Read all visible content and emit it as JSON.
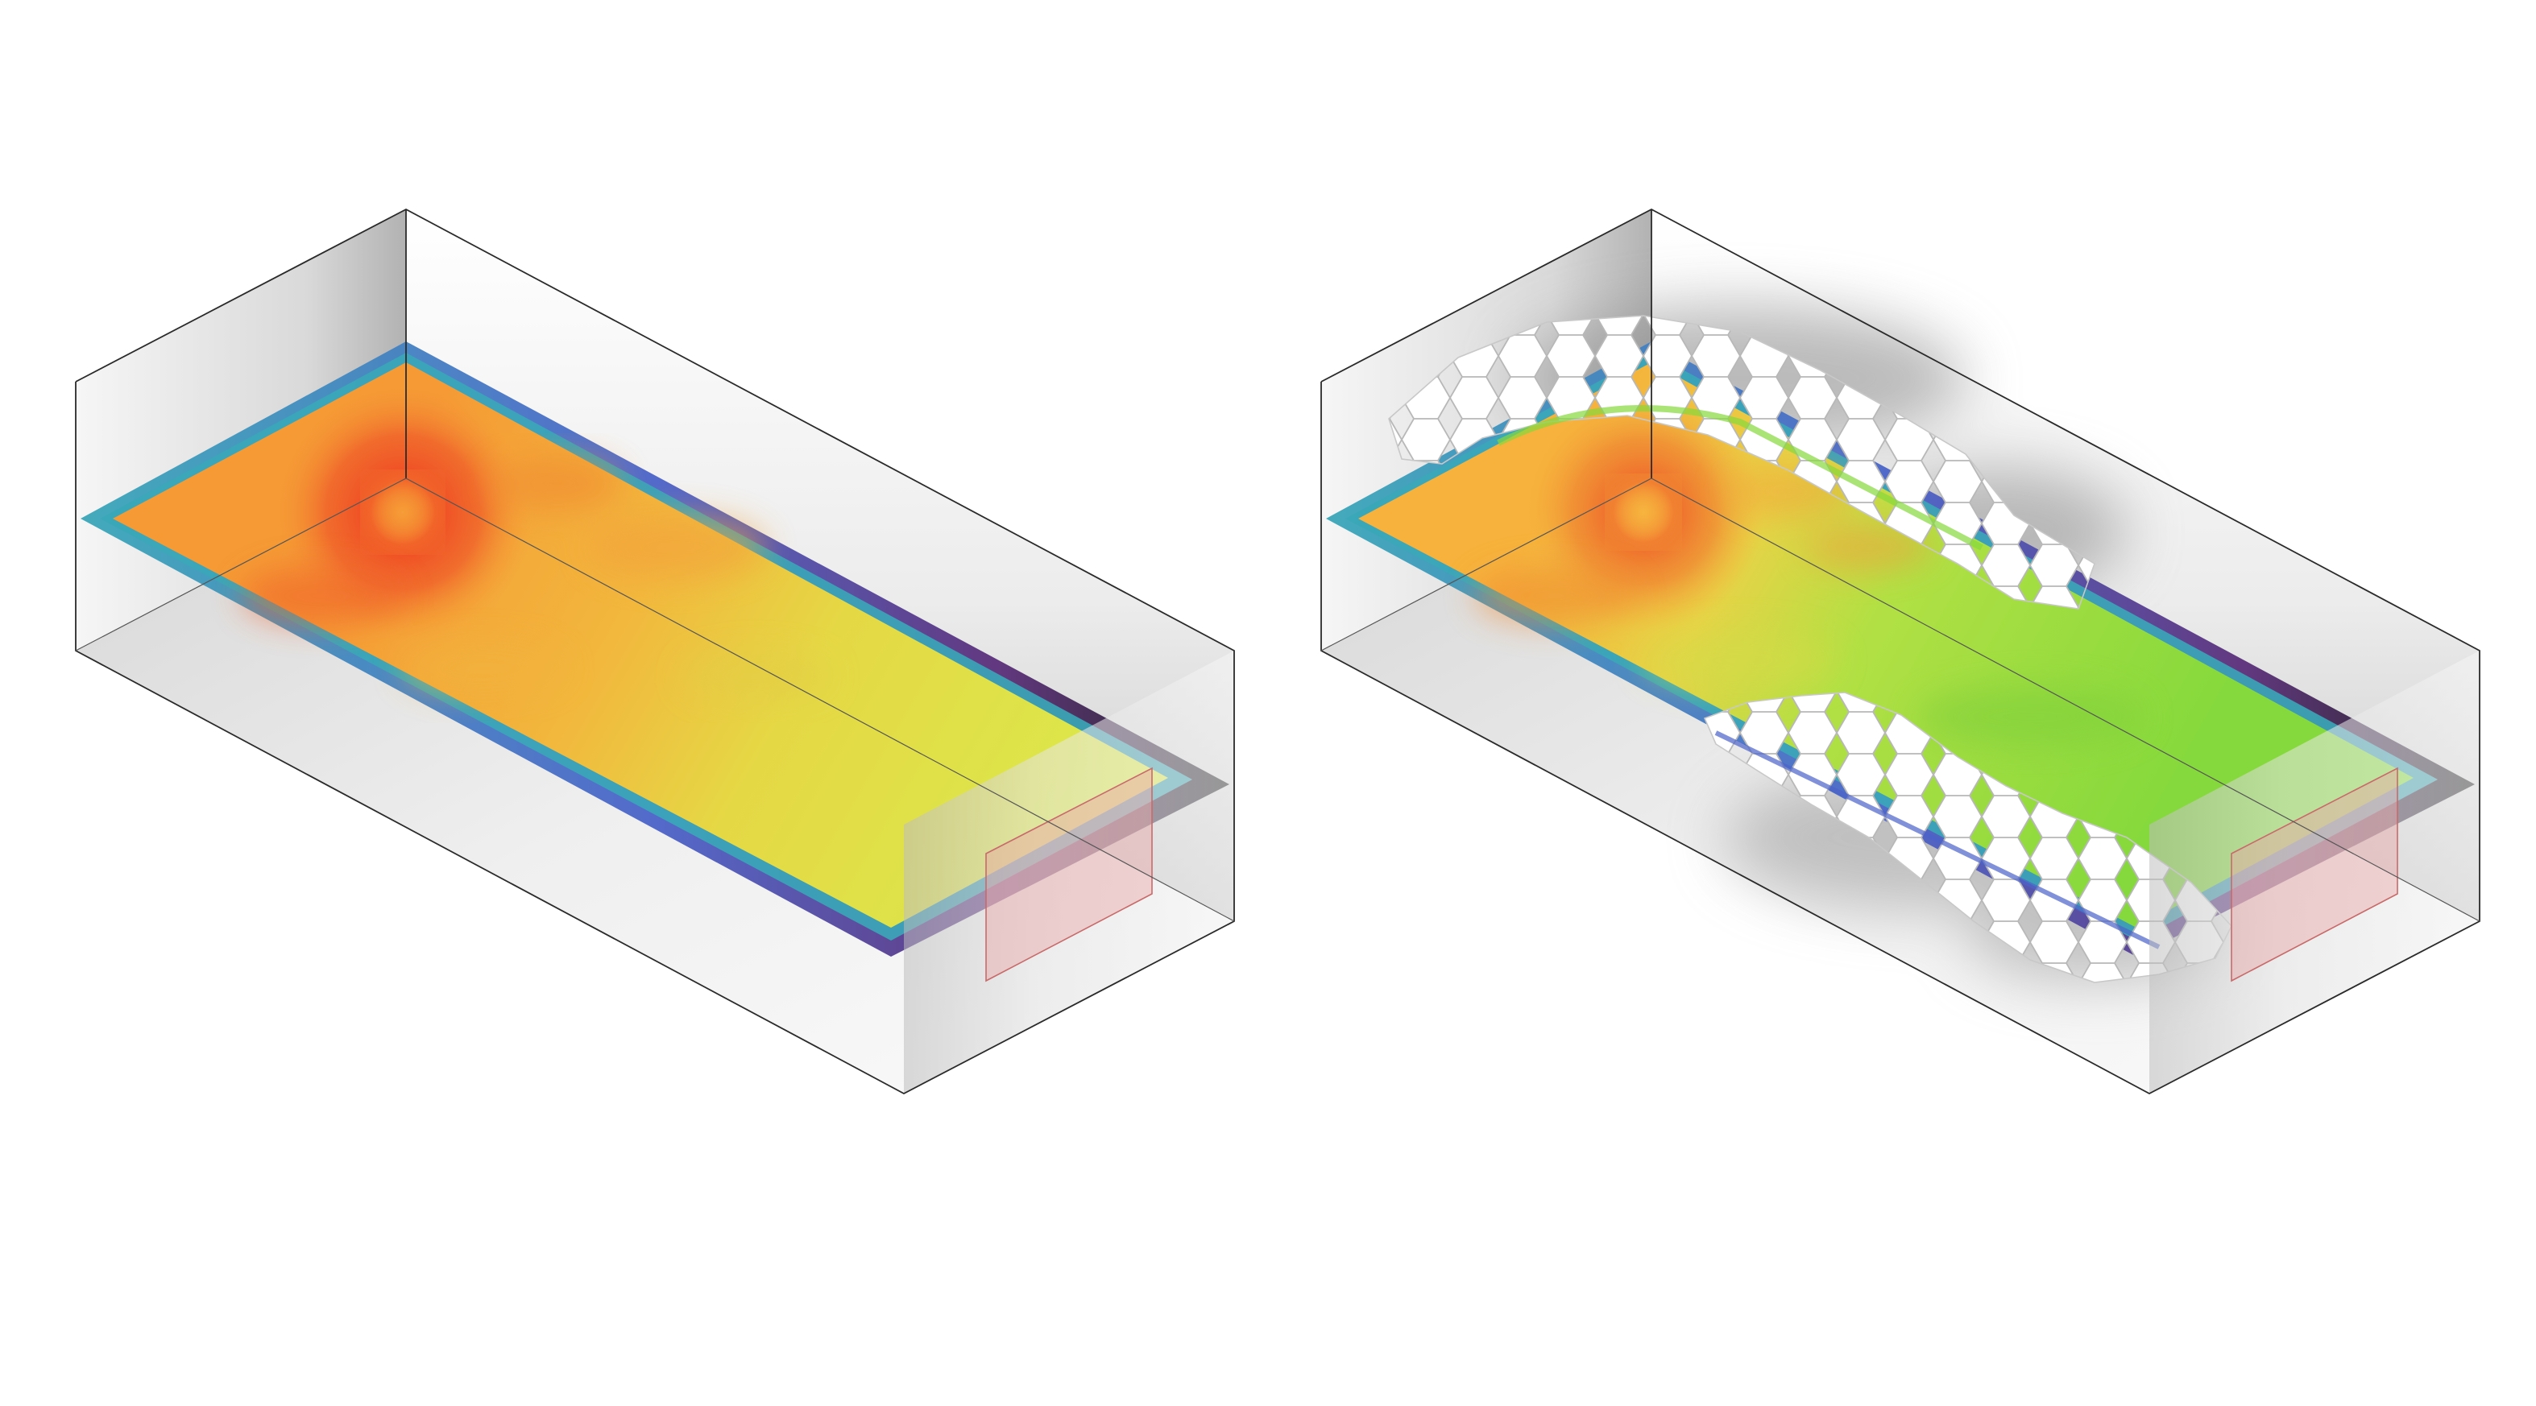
{
  "figure": {
    "panels": [
      {
        "id": "baseline",
        "has_hex_panels": false,
        "heatmap": {
          "colormap": [
            "#f04a24",
            "#f59a35",
            "#f2c43e",
            "#dbe84a"
          ],
          "hotspot": "near-corner"
        }
      },
      {
        "id": "with-hex-panels",
        "has_hex_panels": true,
        "heatmap": {
          "colormap": [
            "#ef6a2c",
            "#f6b23c",
            "#c6e44a",
            "#86d93c"
          ],
          "hotspot": "near-corner"
        }
      }
    ],
    "edge_gradient": [
      "#3aa7b8",
      "#4b63c9",
      "#5b2f7a",
      "#1a1a1a"
    ],
    "window_tint": "#e9a7a7",
    "room_wall_shade": [
      "#f6f6f6",
      "#d2d2d2",
      "#a0a0a0"
    ],
    "hex_fill": "#ffffff",
    "hex_stroke": "#b8b8b8"
  }
}
